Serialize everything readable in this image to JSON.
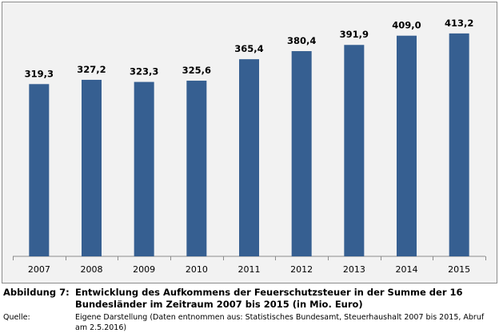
{
  "chart_data": {
    "type": "bar",
    "categories": [
      "2007",
      "2008",
      "2009",
      "2010",
      "2011",
      "2012",
      "2013",
      "2014",
      "2015"
    ],
    "values": [
      319.3,
      327.2,
      323.3,
      325.6,
      365.4,
      380.4,
      391.9,
      409.0,
      413.2
    ],
    "data_labels": [
      "319,3",
      "327,2",
      "323,3",
      "325,6",
      "365,4",
      "380,4",
      "391,9",
      "409,0",
      "413,2"
    ],
    "title": "",
    "xlabel": "",
    "ylabel": "",
    "ylim": [
      0,
      450
    ],
    "grid": false,
    "bar_color": "#365f91",
    "background": "#f2f2f2"
  },
  "caption": {
    "label": "Abbildung 7:",
    "line1": "Entwicklung des Aufkommens der Feuerschutzsteuer in der Summe der 16",
    "line2": "Bundesländer im Zeitraum 2007 bis 2015 (in Mio. Euro)"
  },
  "source": {
    "label": "Quelle:",
    "line1": "Eigene Darstellung (Daten entnommen aus: Statistisches Bundesamt, Steuerhaushalt 2007 bis 2015, Abruf",
    "line2": "am 2.5.2016)"
  }
}
